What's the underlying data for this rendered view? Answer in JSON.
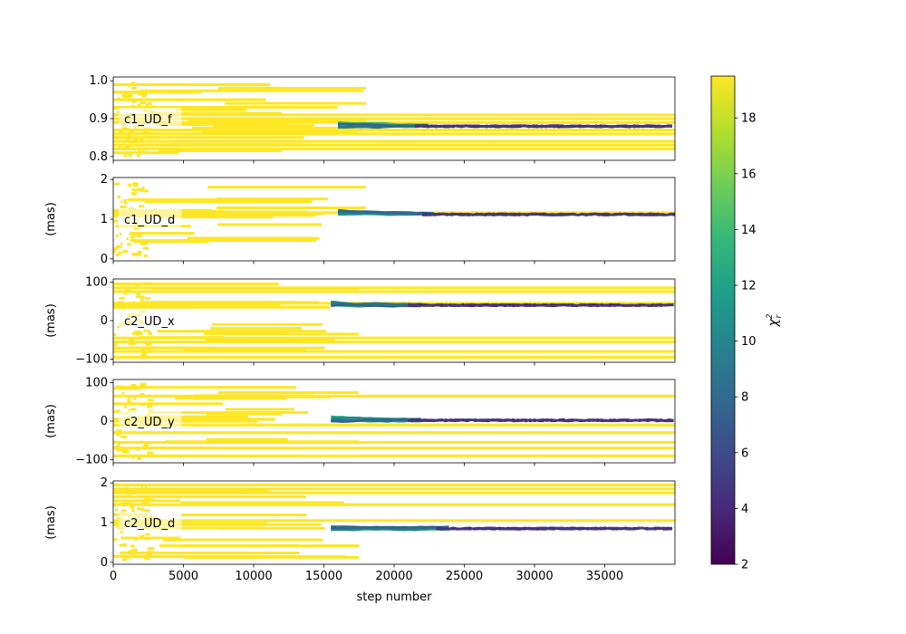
{
  "chart_data": {
    "type": "scatter",
    "description_free": true,
    "xlabel": "step number",
    "xlim": [
      0,
      40000
    ],
    "x_ticks": [
      0,
      5000,
      10000,
      15000,
      20000,
      25000,
      30000,
      35000
    ],
    "x_tick_labels": [
      "0",
      "5000",
      "10000",
      "15000",
      "20000",
      "25000",
      "30000",
      "35000"
    ],
    "colorbar": {
      "label": "χ²ᵣ",
      "label_main": "χ",
      "label_sup": "2",
      "label_sub": "r",
      "range": [
        2,
        19.5
      ],
      "ticks": [
        2,
        4,
        6,
        8,
        10,
        12,
        14,
        16,
        18
      ],
      "tick_labels": [
        "2",
        "4",
        "6",
        "8",
        "10",
        "12",
        "14",
        "16",
        "18"
      ],
      "colormap": [
        "#440154",
        "#482878",
        "#3e4989",
        "#31688e",
        "#26828e",
        "#1f9e89",
        "#35b779",
        "#6ece58",
        "#b5de2b",
        "#fde725"
      ]
    },
    "panels": [
      {
        "name": "c1_UD_f",
        "ylabel": "",
        "ylim": [
          0.79,
          1.01
        ],
        "y_ticks": [
          0.8,
          0.9,
          1.0
        ],
        "y_tick_labels": [
          "0.8",
          "0.9",
          "1.0"
        ],
        "converged_value": 0.88,
        "converge_step": 22500,
        "transition_start": 16000,
        "walkers": [
          0.99,
          0.97,
          0.95,
          0.93,
          0.91,
          0.9,
          0.89,
          0.87,
          0.86,
          0.85,
          0.84,
          0.83,
          0.82,
          0.81
        ],
        "persistent_walkers": [
          0.91,
          0.9,
          0.89,
          0.87,
          0.86,
          0.84,
          0.83,
          0.82
        ]
      },
      {
        "name": "c1_UD_d",
        "ylabel": "(mas)",
        "ylim": [
          -0.05,
          2.05
        ],
        "y_ticks": [
          0,
          1,
          2
        ],
        "y_tick_labels": [
          "0",
          "1",
          "2"
        ],
        "converged_value": 1.12,
        "converge_step": 23000,
        "transition_start": 16000,
        "walkers": [
          1.22,
          1.2,
          1.18,
          1.16,
          1.14,
          1.12,
          1.1
        ],
        "persistent_walkers": [
          1.16
        ]
      },
      {
        "name": "c2_UD_x",
        "ylabel": "(mas)",
        "ylim": [
          -108,
          108
        ],
        "y_ticks": [
          -100,
          0,
          100
        ],
        "y_tick_labels": [
          "−100",
          "0",
          "100"
        ],
        "converged_value": 40,
        "converge_step": 22000,
        "transition_start": 15500,
        "walkers": [
          95,
          85,
          75,
          45,
          40,
          35,
          -45,
          -55,
          -80,
          -95
        ],
        "persistent_walkers": [
          85,
          75,
          45,
          -45,
          -55,
          -80,
          -95
        ]
      },
      {
        "name": "c2_UD_y",
        "ylabel": "(mas)",
        "ylim": [
          -108,
          108
        ],
        "y_ticks": [
          -100,
          0,
          100
        ],
        "y_tick_labels": [
          "−100",
          "0",
          "100"
        ],
        "converged_value": 2,
        "converge_step": 22000,
        "transition_start": 15500,
        "walkers": [
          85,
          65,
          45,
          5,
          0,
          -10,
          -30,
          -55,
          -70,
          -90
        ],
        "persistent_walkers": [
          65,
          -10,
          -30,
          -55,
          -70,
          -90
        ]
      },
      {
        "name": "c2_UD_d",
        "ylabel": "(mas)",
        "ylim": [
          -0.05,
          2.05
        ],
        "y_ticks": [
          0,
          1,
          2
        ],
        "y_tick_labels": [
          "0",
          "1",
          "2"
        ],
        "converged_value": 0.85,
        "converge_step": 24000,
        "transition_start": 15500,
        "walkers": [
          1.95,
          1.85,
          1.75,
          1.65,
          1.55,
          1.45,
          1.2,
          1.05,
          0.95,
          0.15
        ],
        "persistent_walkers": [
          1.95,
          1.85,
          1.75,
          1.45,
          1.05
        ]
      }
    ]
  }
}
